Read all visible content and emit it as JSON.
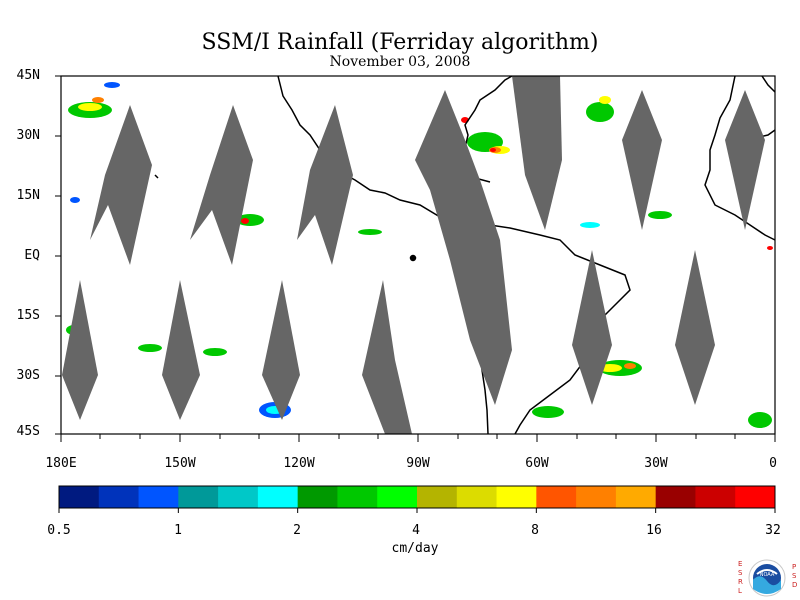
{
  "title": "SSM/I Rainfall (Ferriday algorithm)",
  "subtitle": "November 03, 2008",
  "y_axis_labels": [
    "45N",
    "30N",
    "15N",
    "EQ",
    "15S",
    "30S",
    "45S"
  ],
  "x_axis_labels": [
    "180E",
    "150W",
    "120W",
    "90W",
    "60W",
    "30W",
    "0"
  ],
  "colorbar": {
    "tick_labels": [
      "0.5",
      "1",
      "2",
      "4",
      "8",
      "16",
      "32"
    ],
    "units": "cm/day",
    "colors": [
      "#001a80",
      "#0033bb",
      "#0055ff",
      "#009999",
      "#00c8c8",
      "#00ffff",
      "#009900",
      "#00c800",
      "#00ff00",
      "#b4b400",
      "#dcdc00",
      "#ffff00",
      "#ff5500",
      "#ff8000",
      "#ffaa00",
      "#990000",
      "#cc0000",
      "#ff0000"
    ]
  },
  "map": {
    "land_color": "#ffffff",
    "coastline_color": "#000000",
    "no_data_swath_color": "#666666"
  },
  "logo": {
    "name": "noaa-logo",
    "left_letters": [
      "E",
      "S",
      "R",
      "L"
    ],
    "right_letters": [
      "P",
      "S",
      "D"
    ],
    "text": "NOAA"
  }
}
